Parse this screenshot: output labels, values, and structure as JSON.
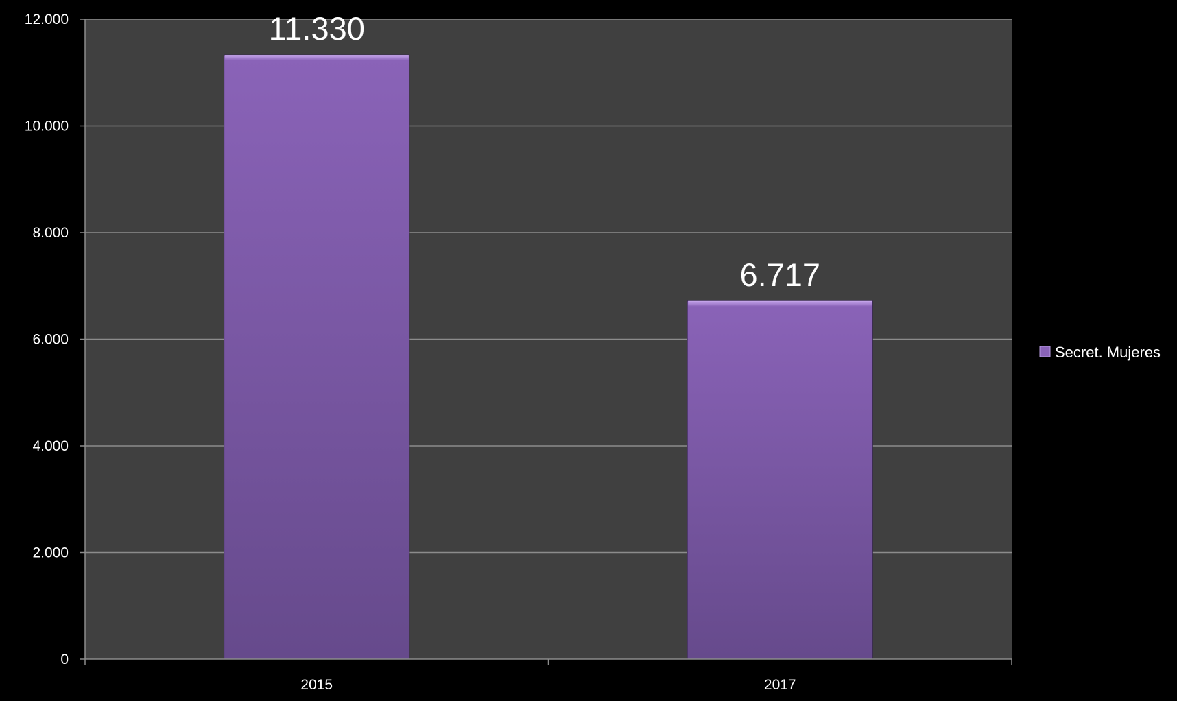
{
  "chart_data": {
    "type": "bar",
    "categories": [
      "2015",
      "2017"
    ],
    "series": [
      {
        "name": "Secret. Mujeres",
        "values": [
          11330,
          6717
        ],
        "value_labels": [
          "11.330",
          "6.717"
        ],
        "color": "#7f5aa8"
      }
    ],
    "title": "",
    "xlabel": "",
    "ylabel": "",
    "ylim": [
      0,
      12000
    ],
    "y_ticks": [
      0,
      2000,
      4000,
      6000,
      8000,
      10000,
      12000
    ],
    "y_tick_labels": [
      "0",
      "2.000",
      "4.000",
      "6.000",
      "8.000",
      "10.000",
      "12.000"
    ],
    "grid": true,
    "legend_position": "right",
    "colors": {
      "page_background": "#000000",
      "plot_background": "#404040",
      "gridline": "#8c8c8c",
      "bar_light": "#8a63b8",
      "bar_dark": "#664a8c",
      "text": "#ffffff"
    }
  }
}
